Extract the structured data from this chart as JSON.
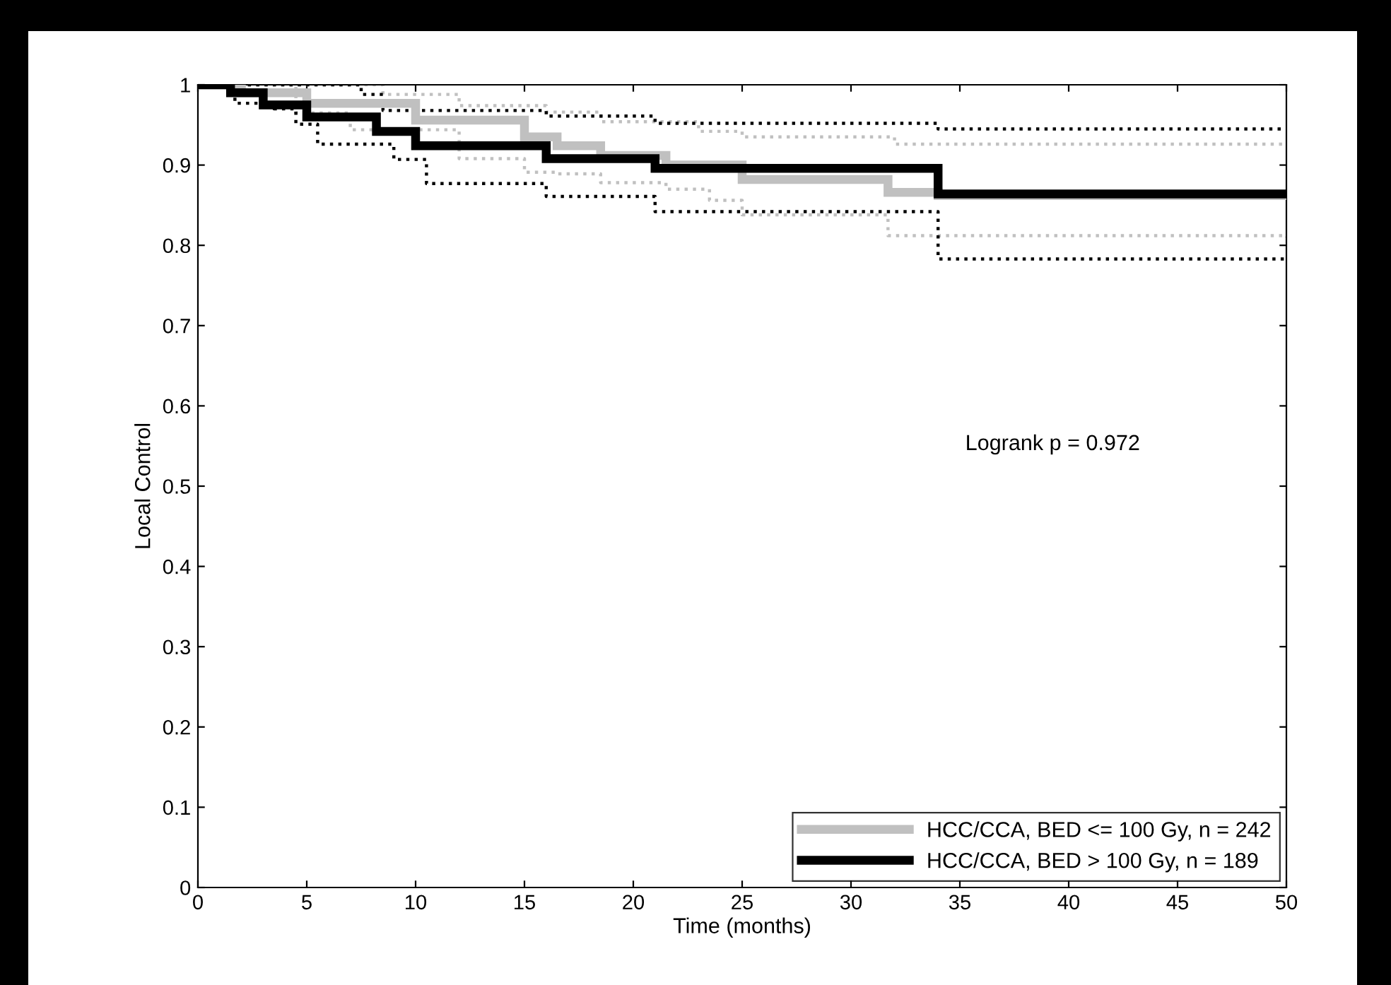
{
  "chart_data": {
    "type": "step",
    "xlabel": "Time (months)",
    "ylabel": "Local Control",
    "xlim": [
      0,
      50
    ],
    "ylim": [
      0,
      1
    ],
    "xticks": [
      0,
      5,
      10,
      15,
      20,
      25,
      30,
      35,
      40,
      45,
      50
    ],
    "yticks": [
      0,
      0.1,
      0.2,
      0.3,
      0.4,
      0.5,
      0.6,
      0.7,
      0.8,
      0.9,
      1
    ],
    "grid": false,
    "legend": "bottom right",
    "annotations": [
      "Logrank p = 0.972"
    ],
    "series": [
      {
        "line_style": "dotted",
        "color": "#c0c0c0",
        "x": [
          0,
          4,
          8.5,
          12,
          16,
          18.5,
          21,
          23,
          25,
          32,
          34,
          50
        ],
        "values": [
          1,
          1,
          0.988,
          0.974,
          0.966,
          0.954,
          0.954,
          0.942,
          0.935,
          0.926,
          0.926,
          0.926
        ]
      },
      {
        "line_style": "dotted",
        "color": "#c0c0c0",
        "x": [
          0,
          4.5,
          7,
          12,
          15,
          16.5,
          18.5,
          21.5,
          23.5,
          25,
          31.7,
          50
        ],
        "values": [
          1,
          0.965,
          0.944,
          0.908,
          0.891,
          0.889,
          0.878,
          0.87,
          0.856,
          0.838,
          0.812,
          0.81
        ]
      },
      {
        "line_style": "dotted",
        "color": "#000000",
        "x": [
          0,
          4,
          7.5,
          8.5,
          16,
          21,
          34,
          50
        ],
        "values": [
          1,
          1,
          0.988,
          0.968,
          0.961,
          0.952,
          0.945,
          0.945
        ]
      },
      {
        "line_style": "dotted",
        "color": "#000000",
        "x": [
          0,
          1.7,
          3.5,
          4.5,
          5.5,
          9,
          10.5,
          16,
          21,
          34,
          50
        ],
        "values": [
          1,
          0.977,
          0.97,
          0.951,
          0.926,
          0.907,
          0.877,
          0.861,
          0.842,
          0.783,
          0.783
        ]
      },
      {
        "line_style": "solid",
        "name": "HCC/CCA, BED <= 100 Gy, n = 242",
        "color": "#c0c0c0",
        "x": [
          0,
          2,
          5,
          10,
          15,
          16.5,
          18.5,
          21.5,
          23.5,
          25,
          31.7,
          34,
          50
        ],
        "values": [
          1,
          0.99,
          0.977,
          0.956,
          0.935,
          0.924,
          0.912,
          0.9,
          0.9,
          0.882,
          0.866,
          0.862,
          0.862
        ]
      },
      {
        "line_style": "solid",
        "name": "HCC/CCA, BED > 100 Gy, n = 189",
        "color": "#000000",
        "x": [
          0,
          1.5,
          3,
          5,
          8.2,
          10,
          16,
          21,
          34,
          50
        ],
        "values": [
          1,
          0.99,
          0.975,
          0.96,
          0.942,
          0.924,
          0.908,
          0.896,
          0.864,
          0.864
        ]
      }
    ]
  }
}
